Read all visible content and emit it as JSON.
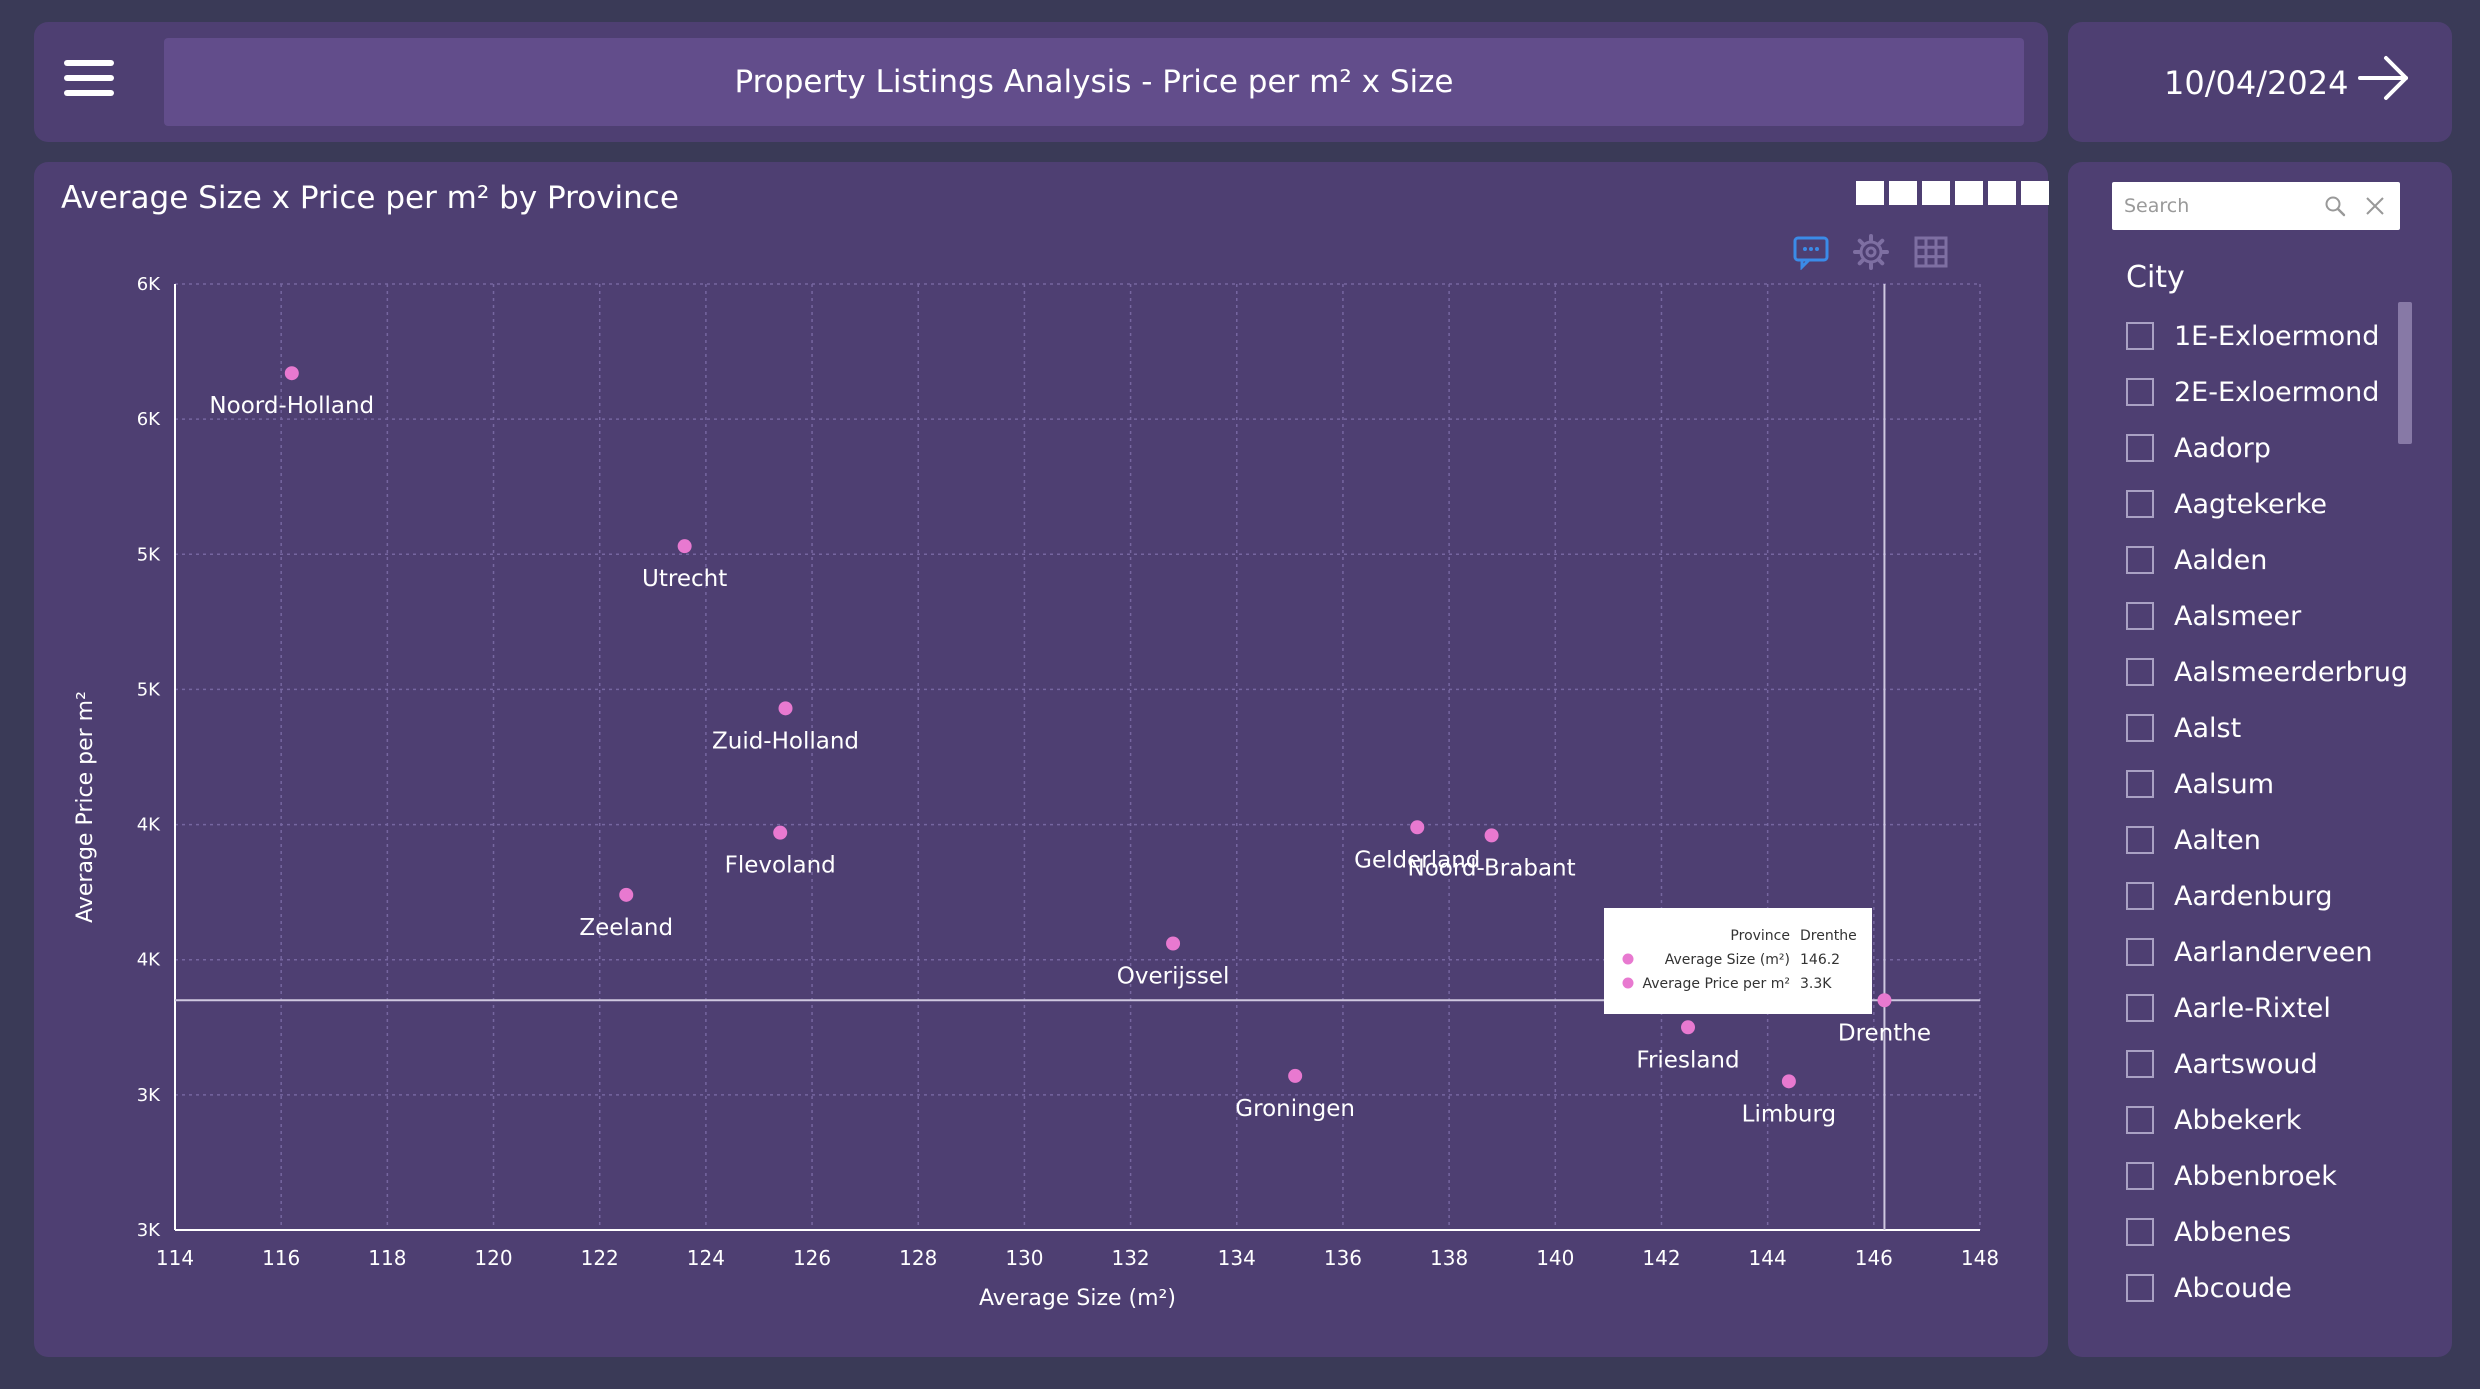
{
  "header": {
    "title": "Property Listings Analysis - Price per m² x Size",
    "date": "10/04/2024",
    "menu_icon": "hamburger-menu-icon",
    "next_icon": "arrow-right-icon"
  },
  "visual": {
    "title": "Average Size x Price per m² by Province",
    "page_buttons": 6,
    "toolbar_icons": [
      "comment-icon",
      "gear-icon",
      "grid-icon"
    ]
  },
  "chart_data": {
    "type": "scatter",
    "title": "Average Size x Price per m² by Province",
    "xlabel": "Average Size (m²)",
    "ylabel": "Average Price per m²",
    "xlim": [
      114,
      148
    ],
    "ylim": [
      2500,
      6000
    ],
    "x_ticks": [
      114,
      116,
      118,
      120,
      122,
      124,
      126,
      128,
      130,
      132,
      134,
      136,
      138,
      140,
      142,
      144,
      146,
      148
    ],
    "y_ticks": [
      2500,
      3000,
      3500,
      4000,
      4500,
      5000,
      5500,
      6000
    ],
    "y_tick_labels": [
      "3K",
      "3K",
      "4K",
      "4K",
      "5K",
      "5K",
      "6K",
      "6K"
    ],
    "point_color": "#e879d0",
    "grid": true,
    "points": [
      {
        "label": "Noord-Holland",
        "x": 116.2,
        "y": 5670
      },
      {
        "label": "Utrecht",
        "x": 123.6,
        "y": 5030
      },
      {
        "label": "Zuid-Holland",
        "x": 125.5,
        "y": 4430
      },
      {
        "label": "Flevoland",
        "x": 125.4,
        "y": 3970
      },
      {
        "label": "Zeeland",
        "x": 122.5,
        "y": 3740
      },
      {
        "label": "Gelderland",
        "x": 137.4,
        "y": 3990
      },
      {
        "label": "Noord-Brabant",
        "x": 138.8,
        "y": 3960
      },
      {
        "label": "Overijssel",
        "x": 132.8,
        "y": 3560
      },
      {
        "label": "Groningen",
        "x": 135.1,
        "y": 3070
      },
      {
        "label": "Friesland",
        "x": 142.5,
        "y": 3250
      },
      {
        "label": "Limburg",
        "x": 144.4,
        "y": 3050
      },
      {
        "label": "Drenthe",
        "x": 146.2,
        "y": 3350
      }
    ],
    "crosshair": {
      "x": 146.2,
      "y": 3350
    },
    "tooltip": {
      "header_label": "Province",
      "header_value": "Drenthe",
      "rows": [
        {
          "label": "Average Size (m²)",
          "value": "146.2"
        },
        {
          "label": "Average Price per m²",
          "value": "3.3K"
        }
      ]
    }
  },
  "filter": {
    "search_placeholder": "Search",
    "heading": "City",
    "items": [
      "1E-Exloermond",
      "2E-Exloermond",
      "Aadorp",
      "Aagtekerke",
      "Aalden",
      "Aalsmeer",
      "Aalsmeerderbrug",
      "Aalst",
      "Aalsum",
      "Aalten",
      "Aardenburg",
      "Aarlanderveen",
      "Aarle-Rixtel",
      "Aartswoud",
      "Abbekerk",
      "Abbenbroek",
      "Abbenes",
      "Abcoude"
    ]
  }
}
